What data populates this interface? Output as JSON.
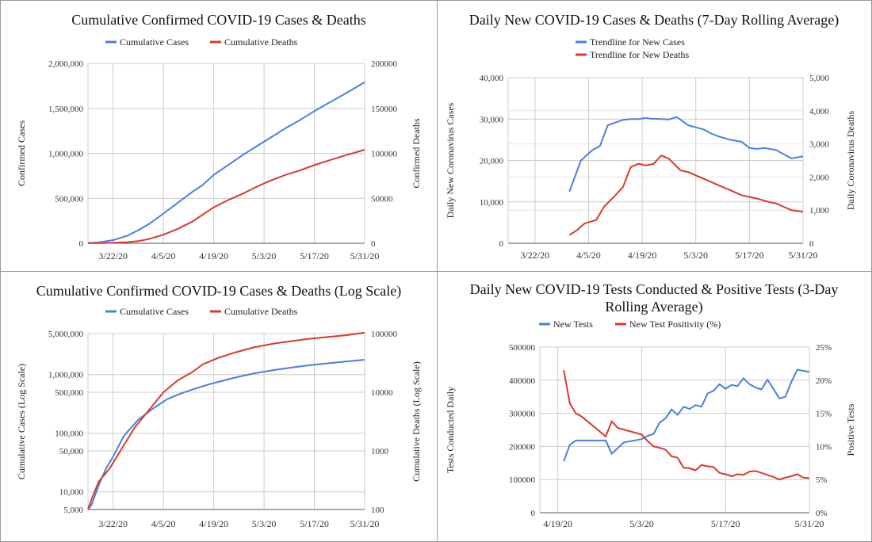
{
  "colors": {
    "cases": "#4a7fe0",
    "deaths": "#d93a2b",
    "grid": "#cccccc",
    "border": "#9a9a9a"
  },
  "chart_data": [
    {
      "type": "line",
      "title": "Cumulative Confirmed COVID-19 Cases & Deaths",
      "ylabel": "Confirmed Cases",
      "y2label": "Confirmed Deaths",
      "xlabel": "",
      "x_ticks": [
        "3/22/20",
        "4/5/20",
        "4/19/20",
        "5/3/20",
        "5/17/20",
        "5/31/20"
      ],
      "x_range": [
        "3/15/20",
        "5/31/20"
      ],
      "ylim": [
        0,
        2000000
      ],
      "y_ticks": [
        "0",
        "500,000",
        "1,000,000",
        "1,500,000",
        "2,000,000"
      ],
      "y2lim": [
        0,
        200000
      ],
      "y2_ticks": [
        "0",
        "50000",
        "100000",
        "150000",
        "200000"
      ],
      "grid": true,
      "legend_position": "top",
      "series": [
        {
          "name": "Cumulative Cases",
          "axis": "left",
          "color": "#4a7fe0",
          "x": [
            "3/15/20",
            "3/18/20",
            "3/22/20",
            "3/26/20",
            "3/29/20",
            "4/1/20",
            "4/5/20",
            "4/9/20",
            "4/13/20",
            "4/16/20",
            "4/19/20",
            "4/23/20",
            "4/27/20",
            "5/1/20",
            "5/5/20",
            "5/9/20",
            "5/13/20",
            "5/17/20",
            "5/21/20",
            "5/25/20",
            "5/31/20"
          ],
          "values": [
            3000,
            10000,
            35000,
            85000,
            145000,
            215000,
            330000,
            450000,
            570000,
            650000,
            760000,
            870000,
            980000,
            1080000,
            1180000,
            1280000,
            1370000,
            1470000,
            1560000,
            1650000,
            1790000
          ]
        },
        {
          "name": "Cumulative Deaths",
          "axis": "right",
          "color": "#d93a2b",
          "x": [
            "3/15/20",
            "3/18/20",
            "3/22/20",
            "3/26/20",
            "3/29/20",
            "4/1/20",
            "4/5/20",
            "4/9/20",
            "4/13/20",
            "4/16/20",
            "4/19/20",
            "4/23/20",
            "4/27/20",
            "5/1/20",
            "5/5/20",
            "5/9/20",
            "5/13/20",
            "5/17/20",
            "5/21/20",
            "5/25/20",
            "5/31/20"
          ],
          "values": [
            50,
            150,
            500,
            1200,
            2500,
            4800,
            9500,
            16000,
            24000,
            32000,
            40000,
            48000,
            55000,
            63000,
            70000,
            76000,
            81000,
            87000,
            92000,
            97000,
            104000
          ]
        }
      ]
    },
    {
      "type": "line",
      "title": "Daily New COVID-19 Cases & Deaths (7-Day Rolling Average)",
      "ylabel": "Daily New Coronavirus Cases",
      "y2label": "Daily Coronavirus Deaths",
      "xlabel": "",
      "x_ticks": [
        "3/22/20",
        "4/5/20",
        "4/19/20",
        "5/3/20",
        "5/17/20",
        "5/31/20"
      ],
      "x_range": [
        "3/15/20",
        "5/31/20"
      ],
      "ylim": [
        0,
        40000
      ],
      "y_ticks": [
        "0",
        "10,000",
        "20,000",
        "30,000",
        "40,000"
      ],
      "y2lim": [
        0,
        5000
      ],
      "y2_ticks": [
        "0",
        "1,000",
        "2,000",
        "3,000",
        "4,000",
        "5,000"
      ],
      "grid": true,
      "legend_position": "top",
      "series": [
        {
          "name": "Trendline for New Cases",
          "axis": "left",
          "color": "#4a7fe0",
          "x": [
            "3/31/20",
            "4/3/20",
            "4/6/20",
            "4/8/20",
            "4/10/20",
            "4/14/20",
            "4/16/20",
            "4/18/20",
            "4/20/20",
            "4/21/20",
            "4/24/20",
            "4/26/20",
            "4/28/20",
            "5/1/20",
            "5/3/20",
            "5/5/20",
            "5/7/20",
            "5/9/20",
            "5/12/20",
            "5/15/20",
            "5/17/20",
            "5/19/20",
            "5/21/20",
            "5/24/20",
            "5/26/20",
            "5/28/20",
            "5/31/20"
          ],
          "values": [
            12500,
            20000,
            22500,
            23500,
            28500,
            29800,
            30000,
            30000,
            30300,
            30100,
            30000,
            29900,
            30500,
            28500,
            28000,
            27500,
            26500,
            25800,
            25000,
            24500,
            23000,
            22800,
            23000,
            22500,
            21500,
            20500,
            21000
          ]
        },
        {
          "name": "Trendline for New Deaths",
          "axis": "right",
          "color": "#d93a2b",
          "x": [
            "3/31/20",
            "4/2/20",
            "4/4/20",
            "4/7/20",
            "4/9/20",
            "4/12/20",
            "4/14/20",
            "4/16/20",
            "4/18/20",
            "4/20/20",
            "4/22/20",
            "4/24/20",
            "4/26/20",
            "4/29/20",
            "5/1/20",
            "5/3/20",
            "5/6/20",
            "5/8/20",
            "5/10/20",
            "5/13/20",
            "5/15/20",
            "5/17/20",
            "5/19/20",
            "5/22/20",
            "5/24/20",
            "5/26/20",
            "5/28/20",
            "5/31/20"
          ],
          "values": [
            250,
            400,
            600,
            700,
            1100,
            1450,
            1700,
            2300,
            2400,
            2350,
            2400,
            2650,
            2550,
            2200,
            2150,
            2050,
            1900,
            1800,
            1700,
            1550,
            1450,
            1400,
            1350,
            1250,
            1200,
            1100,
            1000,
            950
          ]
        }
      ]
    },
    {
      "type": "line",
      "title": "Cumulative Confirmed COVID-19 Cases & Deaths (Log Scale)",
      "ylabel": "Cumulative Cases (Log Scale)",
      "y2label": "Cumulative Deaths (Log Scale)",
      "xlabel": "",
      "log_scale": true,
      "x_ticks": [
        "3/22/20",
        "4/5/20",
        "4/19/20",
        "5/3/20",
        "5/17/20",
        "5/31/20"
      ],
      "x_range": [
        "3/15/20",
        "5/31/20"
      ],
      "ylim": [
        5000,
        5000000
      ],
      "y_ticks": [
        "5,000",
        "10,000",
        "50,000",
        "100,000",
        "500,000",
        "1,000,000",
        "5,000,000"
      ],
      "y2lim": [
        100,
        100000
      ],
      "y2_ticks": [
        "100",
        "1000",
        "10000",
        "100000"
      ],
      "grid": true,
      "legend_position": "top",
      "series": [
        {
          "name": "Cumulative Cases",
          "axis": "left",
          "color": "#4a7fe0",
          "x": [
            "3/15/20",
            "3/16/20",
            "3/18/20",
            "3/20/20",
            "3/22/20",
            "3/25/20",
            "3/29/20",
            "4/2/20",
            "4/6/20",
            "4/10/20",
            "4/14/20",
            "4/18/20",
            "4/22/20",
            "4/26/20",
            "5/1/20",
            "5/6/20",
            "5/11/20",
            "5/16/20",
            "5/21/20",
            "5/26/20",
            "5/31/20"
          ],
          "values": [
            5000,
            6000,
            13000,
            25000,
            40000,
            90000,
            170000,
            260000,
            380000,
            480000,
            580000,
            690000,
            800000,
            920000,
            1070000,
            1200000,
            1330000,
            1450000,
            1560000,
            1680000,
            1790000
          ]
        },
        {
          "name": "Cumulative Deaths",
          "axis": "right",
          "color": "#d93a2b",
          "x": [
            "3/15/20",
            "3/16/20",
            "3/18/20",
            "3/21/20",
            "3/24/20",
            "3/28/20",
            "4/1/20",
            "4/5/20",
            "4/9/20",
            "4/13/20",
            "4/16/20",
            "4/20/20",
            "4/24/20",
            "4/30/20",
            "5/6/20",
            "5/11/20",
            "5/16/20",
            "5/21/20",
            "5/26/20",
            "5/31/20"
          ],
          "values": [
            100,
            150,
            300,
            500,
            1000,
            2500,
            5000,
            10000,
            16000,
            22000,
            30000,
            38000,
            46000,
            58000,
            68000,
            75000,
            82000,
            88000,
            94000,
            104000
          ]
        }
      ]
    },
    {
      "type": "line",
      "title": "Daily New COVID-19 Tests Conducted & Positive Tests (3-Day Rolling Average)",
      "ylabel": "Tests Conducted Daily",
      "y2label": "Positive Tests",
      "xlabel": "",
      "x_ticks": [
        "4/19/20",
        "5/3/20",
        "5/17/20",
        "5/31/20"
      ],
      "x_range": [
        "4/16/20",
        "5/31/20"
      ],
      "ylim": [
        0,
        500000
      ],
      "y_ticks": [
        "0",
        "100000",
        "200000",
        "300000",
        "400000",
        "500000"
      ],
      "y2lim": [
        0,
        25
      ],
      "y2_ticks": [
        "0%",
        "5%",
        "10%",
        "15%",
        "20%",
        "25%"
      ],
      "grid": true,
      "legend_position": "top",
      "series": [
        {
          "name": "New Tests",
          "axis": "left",
          "color": "#4a7fe0",
          "x": [
            "4/20/20",
            "4/21/20",
            "4/22/20",
            "4/27/20",
            "4/28/20",
            "4/30/20",
            "5/3/20",
            "5/4/20",
            "5/5/20",
            "5/6/20",
            "5/7/20",
            "5/8/20",
            "5/9/20",
            "5/10/20",
            "5/11/20",
            "5/12/20",
            "5/13/20",
            "5/14/20",
            "5/15/20",
            "5/16/20",
            "5/17/20",
            "5/18/20",
            "5/19/20",
            "5/20/20",
            "5/21/20",
            "5/22/20",
            "5/23/20",
            "5/24/20",
            "5/26/20",
            "5/27/20",
            "5/28/20",
            "5/29/20",
            "5/30/20",
            "5/31/20"
          ],
          "values": [
            155000,
            205000,
            218000,
            218000,
            178000,
            212000,
            222000,
            232000,
            238000,
            272000,
            285000,
            312000,
            295000,
            320000,
            313000,
            325000,
            320000,
            360000,
            368000,
            388000,
            374000,
            386000,
            382000,
            406000,
            388000,
            378000,
            372000,
            402000,
            345000,
            350000,
            395000,
            432000,
            428000,
            425000
          ]
        },
        {
          "name": "New Test Positivity (%)",
          "axis": "right",
          "color": "#d93a2b",
          "x": [
            "4/20/20",
            "4/21/20",
            "4/22/20",
            "4/23/20",
            "4/27/20",
            "4/28/20",
            "4/29/20",
            "5/3/20",
            "5/4/20",
            "5/5/20",
            "5/6/20",
            "5/7/20",
            "5/8/20",
            "5/9/20",
            "5/10/20",
            "5/11/20",
            "5/12/20",
            "5/13/20",
            "5/14/20",
            "5/15/20",
            "5/16/20",
            "5/17/20",
            "5/18/20",
            "5/19/20",
            "5/20/20",
            "5/21/20",
            "5/22/20",
            "5/23/20",
            "5/24/20",
            "5/25/20",
            "5/26/20",
            "5/27/20",
            "5/28/20",
            "5/29/20",
            "5/30/20",
            "5/31/20"
          ],
          "values": [
            21.5,
            16.5,
            15,
            14.5,
            11.5,
            13.8,
            12.8,
            11.8,
            10.8,
            10,
            9.8,
            9.5,
            8.5,
            8.3,
            6.8,
            6.7,
            6.4,
            7.2,
            7,
            6.9,
            6,
            5.8,
            5.5,
            5.8,
            5.7,
            6.2,
            6.3,
            6,
            5.7,
            5.4,
            5,
            5.3,
            5.5,
            5.8,
            5.3,
            5.2
          ]
        }
      ]
    }
  ]
}
